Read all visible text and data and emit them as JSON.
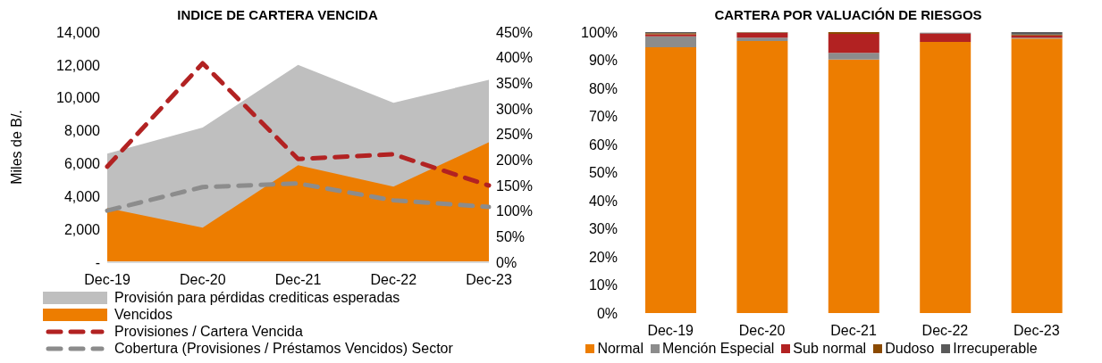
{
  "chart_data": [
    {
      "type": "area",
      "title": "INDICE DE CARTERA VENCIDA",
      "ylabel": "Miles de B/.",
      "categories": [
        "Dec-19",
        "Dec-20",
        "Dec-21",
        "Dec-22",
        "Dec-23"
      ],
      "series": [
        {
          "name": "Provisión para pérdidas crediticas esperadas",
          "type": "area",
          "color": "#bfbfbf",
          "values": [
            6600,
            8200,
            12000,
            9700,
            11100
          ]
        },
        {
          "name": "Vencidos",
          "type": "area",
          "color": "#ed7d00",
          "values": [
            3300,
            2100,
            5900,
            4600,
            7300
          ]
        },
        {
          "name": "Provisiones / Cartera Vencida",
          "type": "line",
          "axis": "y2",
          "line_style": "dashed",
          "color": "#b22222",
          "values": [
            187,
            389,
            202,
            211,
            150
          ]
        },
        {
          "name": "Cobertura (Provisiones / Préstamos Vencidos) Sector",
          "type": "line",
          "axis": "y2",
          "line_style": "dashed",
          "color": "#8c8c8c",
          "values": [
            101,
            147,
            154,
            121,
            108
          ]
        }
      ],
      "ylim": [
        0,
        14000
      ],
      "yticks": [
        {
          "value": 0,
          "label": "-"
        },
        {
          "value": 2000,
          "label": "2,000"
        },
        {
          "value": 4000,
          "label": "4,000"
        },
        {
          "value": 6000,
          "label": "6,000"
        },
        {
          "value": 8000,
          "label": "8,000"
        },
        {
          "value": 10000,
          "label": "10,000"
        },
        {
          "value": 12000,
          "label": "12,000"
        },
        {
          "value": 14000,
          "label": "14,000"
        }
      ],
      "y2lim": [
        0,
        450
      ],
      "y2ticks": [
        {
          "value": 0,
          "label": "0%"
        },
        {
          "value": 50,
          "label": "50%"
        },
        {
          "value": 100,
          "label": "100%"
        },
        {
          "value": 150,
          "label": "150%"
        },
        {
          "value": 200,
          "label": "200%"
        },
        {
          "value": 250,
          "label": "250%"
        },
        {
          "value": 300,
          "label": "300%"
        },
        {
          "value": 350,
          "label": "350%"
        },
        {
          "value": 400,
          "label": "400%"
        },
        {
          "value": 450,
          "label": "450%"
        }
      ],
      "grid": false,
      "legend": "bottom",
      "marker": "none"
    },
    {
      "type": "bar",
      "title": "CARTERA POR VALUACIÓN DE RIESGOS",
      "stacked": true,
      "categories": [
        "Dec-19",
        "Dec-20",
        "Dec-21",
        "Dec-22",
        "Dec-23"
      ],
      "series": [
        {
          "name": "Normal",
          "color": "#ed7d00",
          "values": [
            94.6,
            96.8,
            90.2,
            96.5,
            97.7
          ]
        },
        {
          "name": "Mención Especial",
          "color": "#8c8c8c",
          "values": [
            3.9,
            1.2,
            2.4,
            null,
            0.3
          ]
        },
        {
          "name": "Sub normal",
          "color": "#b22222",
          "values": [
            0.7,
            1.8,
            6.8,
            3.0,
            0.8
          ]
        },
        {
          "name": "Dudoso",
          "color": "#8b4a00",
          "values": [
            0.4,
            0.1,
            0.6,
            0,
            0.3
          ]
        },
        {
          "name": "Irrecuperable",
          "color": "#595959",
          "values": [
            0.4,
            0.1,
            0,
            0.3,
            0.9
          ]
        }
      ],
      "ylim": [
        0,
        100
      ],
      "yticks": [
        {
          "value": 0,
          "label": "0%"
        },
        {
          "value": 10,
          "label": "10%"
        },
        {
          "value": 20,
          "label": "20%"
        },
        {
          "value": 30,
          "label": "30%"
        },
        {
          "value": 40,
          "label": "40%"
        },
        {
          "value": 50,
          "label": "50%"
        },
        {
          "value": 60,
          "label": "60%"
        },
        {
          "value": 70,
          "label": "70%"
        },
        {
          "value": 80,
          "label": "80%"
        },
        {
          "value": 90,
          "label": "90%"
        },
        {
          "value": 100,
          "label": "100%"
        }
      ],
      "grid": false,
      "legend": "bottom"
    }
  ]
}
